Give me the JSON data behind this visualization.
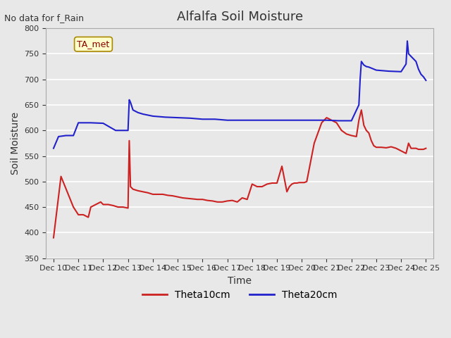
{
  "title": "Alfalfa Soil Moisture",
  "xlabel": "Time",
  "ylabel": "Soil Moisture",
  "no_data_label": "No data for f_Rain",
  "ta_met_label": "TA_met",
  "legend_labels": [
    "Theta10cm",
    "Theta20cm"
  ],
  "color_red": "#CC2222",
  "color_blue": "#2222CC",
  "ylim": [
    350,
    800
  ],
  "yticks": [
    350,
    400,
    450,
    500,
    550,
    600,
    650,
    700,
    750,
    800
  ],
  "x_tick_labels": [
    "Dec 10",
    "Dec 11",
    "Dec 12",
    "Dec 13",
    "Dec 14",
    "Dec 15",
    "Dec 16",
    "Dec 17",
    "Dec 18",
    "Dec 19",
    "Dec 20",
    "Dec 21",
    "Dec 22",
    "Dec 23",
    "Dec 24",
    "Dec 25"
  ],
  "background_color": "#E8E8E8",
  "plot_bg_color": "#E8E8E8",
  "grid_color": "#FFFFFF",
  "theta10_x": [
    0,
    0.3,
    0.8,
    1.0,
    1.2,
    1.4,
    1.5,
    1.7,
    1.9,
    2.0,
    2.2,
    2.4,
    2.6,
    2.8,
    3.0,
    3.05,
    3.1,
    3.2,
    3.4,
    3.6,
    3.8,
    4.0,
    4.2,
    4.4,
    4.6,
    4.8,
    5.0,
    5.2,
    5.4,
    5.6,
    5.8,
    6.0,
    6.2,
    6.4,
    6.6,
    6.8,
    7.0,
    7.2,
    7.4,
    7.6,
    7.8,
    8.0,
    8.2,
    8.4,
    8.6,
    8.8,
    9.0,
    9.2,
    9.4,
    9.5,
    9.6,
    9.7,
    9.8,
    9.9,
    10.0,
    10.1,
    10.2,
    10.5,
    10.8,
    11.0,
    11.2,
    11.4,
    11.6,
    11.8,
    12.0,
    12.2,
    12.3,
    12.4,
    12.5,
    12.6,
    12.7,
    12.8,
    12.9,
    13.0,
    13.2,
    13.4,
    13.6,
    13.8,
    14.0,
    14.2,
    14.3,
    14.35,
    14.4,
    14.5,
    14.6,
    14.7,
    14.8,
    14.9,
    15.0
  ],
  "theta10_y": [
    390,
    510,
    450,
    435,
    435,
    430,
    450,
    455,
    460,
    455,
    455,
    453,
    450,
    450,
    448,
    580,
    490,
    485,
    482,
    480,
    478,
    475,
    475,
    475,
    473,
    472,
    470,
    468,
    467,
    466,
    465,
    465,
    463,
    462,
    460,
    460,
    462,
    463,
    460,
    468,
    465,
    495,
    490,
    490,
    495,
    497,
    497,
    530,
    480,
    490,
    495,
    497,
    497,
    498,
    498,
    498,
    500,
    575,
    615,
    625,
    620,
    615,
    600,
    593,
    590,
    588,
    620,
    640,
    610,
    600,
    595,
    580,
    570,
    567,
    567,
    566,
    568,
    565,
    560,
    555,
    575,
    570,
    565,
    565,
    565,
    563,
    563,
    563,
    565
  ],
  "theta20_x": [
    0,
    0.2,
    0.5,
    0.8,
    1.0,
    1.5,
    2.0,
    2.5,
    3.0,
    3.05,
    3.1,
    3.2,
    3.4,
    3.6,
    3.8,
    4.0,
    4.5,
    5.0,
    5.5,
    6.0,
    6.5,
    7.0,
    7.5,
    8.0,
    8.5,
    9.0,
    9.5,
    10.0,
    10.5,
    11.0,
    11.5,
    12.0,
    12.3,
    12.35,
    12.4,
    12.5,
    12.6,
    12.7,
    12.8,
    12.9,
    13.0,
    13.5,
    14.0,
    14.2,
    14.25,
    14.3,
    14.5,
    14.6,
    14.7,
    14.8,
    14.9,
    15.0
  ],
  "theta20_y": [
    565,
    588,
    590,
    590,
    615,
    615,
    614,
    600,
    600,
    660,
    655,
    640,
    635,
    632,
    630,
    628,
    626,
    625,
    624,
    622,
    622,
    620,
    620,
    620,
    620,
    620,
    620,
    620,
    620,
    620,
    619,
    619,
    650,
    700,
    735,
    728,
    725,
    724,
    722,
    720,
    718,
    716,
    715,
    730,
    775,
    750,
    740,
    735,
    720,
    710,
    705,
    698
  ]
}
